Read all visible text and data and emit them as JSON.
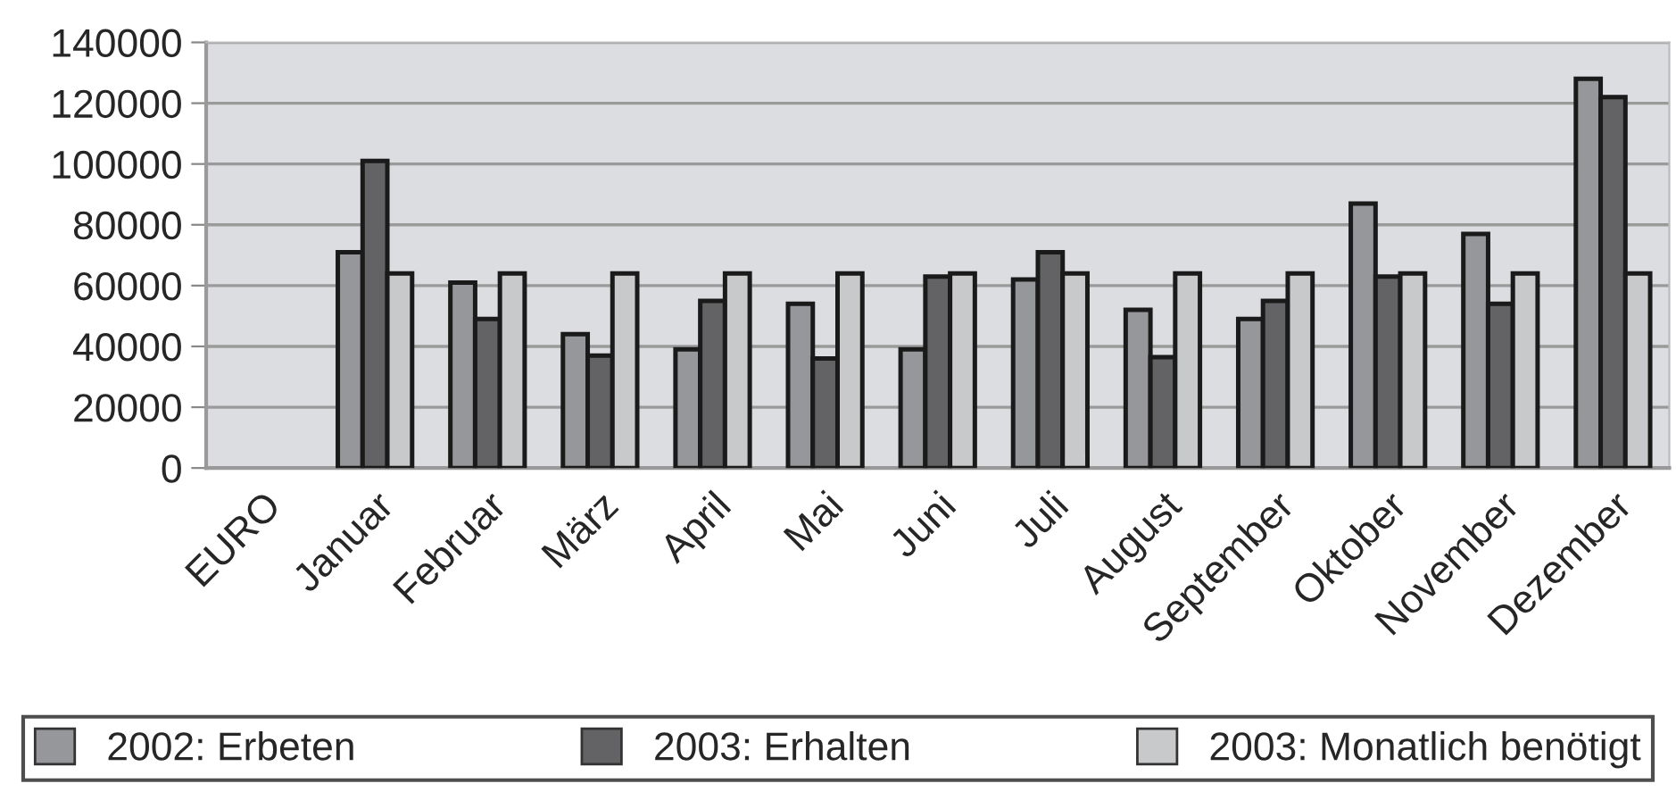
{
  "chart_data": {
    "type": "bar",
    "categories": [
      "EURO",
      "Januar",
      "Februar",
      "März",
      "April",
      "Mai",
      "Juni",
      "Juli",
      "August",
      "September",
      "Oktober",
      "November",
      "Dezember"
    ],
    "series": [
      {
        "name": "2002: Erbeten",
        "color": "#96979a",
        "values": [
          null,
          71000,
          61000,
          44000,
          39000,
          54000,
          39000,
          62000,
          52000,
          49000,
          87000,
          77000,
          128000
        ]
      },
      {
        "name": "2003: Erhalten",
        "color": "#636365",
        "values": [
          null,
          101000,
          49000,
          37000,
          55000,
          36000,
          63000,
          71000,
          36500,
          55000,
          63000,
          54000,
          122000
        ]
      },
      {
        "name": "2003: Monatlich benötigt",
        "color": "#c8c9cb",
        "values": [
          null,
          64000,
          64000,
          64000,
          64000,
          64000,
          64000,
          64000,
          64000,
          64000,
          64000,
          64000,
          64000
        ]
      }
    ],
    "ylim": [
      0,
      140000
    ],
    "yticks": [
      0,
      20000,
      40000,
      60000,
      80000,
      100000,
      120000,
      140000
    ],
    "grid": "y",
    "legend": "bottom"
  }
}
